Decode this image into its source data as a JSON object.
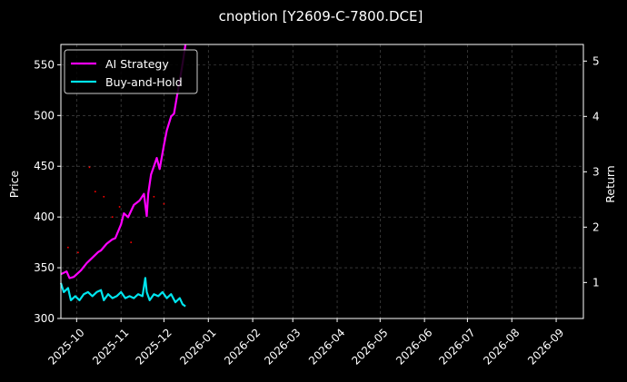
{
  "chart_data": {
    "type": "line",
    "title": "cnoption [Y2609-C-7800.DCE]",
    "ylabel": "Price",
    "y2label": "Return",
    "x_ticks": [
      "2025-10",
      "2025-11",
      "2025-12",
      "2026-01",
      "2026-02",
      "2026-03",
      "2026-04",
      "2026-05",
      "2026-06",
      "2026-07",
      "2026-08",
      "2026-09"
    ],
    "xlim": [
      "2025-09-20",
      "2026-09-20"
    ],
    "ylim": [
      300,
      570
    ],
    "y_ticks": [
      300,
      350,
      400,
      450,
      500,
      550
    ],
    "y2lim": [
      0.35,
      5.3
    ],
    "y2_ticks": [
      1,
      2,
      3,
      4,
      5
    ],
    "grid": true,
    "legend": "top-left",
    "colors": {
      "background": "#000000",
      "grid": "#555555",
      "spine": "#ffffff",
      "ai_strategy": "#ff00ff",
      "buy_and_hold": "#00e5ee",
      "trade_marker": "#ff0000"
    },
    "series": [
      {
        "name": "AI Strategy",
        "axis": "right",
        "x": [
          "2025-09-20",
          "2025-09-24",
          "2025-09-26",
          "2025-09-29",
          "2025-10-04",
          "2025-10-08",
          "2025-10-12",
          "2025-10-16",
          "2025-10-18",
          "2025-10-22",
          "2025-10-26",
          "2025-10-28",
          "2025-11-01",
          "2025-11-03",
          "2025-11-06",
          "2025-11-10",
          "2025-11-14",
          "2025-11-17",
          "2025-11-19",
          "2025-11-20",
          "2025-11-22",
          "2025-11-24",
          "2025-11-26",
          "2025-11-28",
          "2025-12-01",
          "2025-12-03",
          "2025-12-06",
          "2025-12-08",
          "2025-12-10",
          "2025-12-12",
          "2025-12-14",
          "2025-12-16"
        ],
        "values": [
          1.15,
          1.2,
          1.08,
          1.1,
          1.22,
          1.35,
          1.45,
          1.55,
          1.58,
          1.7,
          1.78,
          1.8,
          2.05,
          2.25,
          2.18,
          2.4,
          2.48,
          2.6,
          2.2,
          2.6,
          2.95,
          3.1,
          3.25,
          3.05,
          3.48,
          3.75,
          4.0,
          4.05,
          4.35,
          4.65,
          4.95,
          5.3
        ]
      },
      {
        "name": "Buy-and-Hold",
        "axis": "left",
        "x": [
          "2025-09-20",
          "2025-09-22",
          "2025-09-25",
          "2025-09-27",
          "2025-09-30",
          "2025-10-03",
          "2025-10-06",
          "2025-10-09",
          "2025-10-12",
          "2025-10-15",
          "2025-10-18",
          "2025-10-20",
          "2025-10-23",
          "2025-10-26",
          "2025-10-29",
          "2025-11-01",
          "2025-11-04",
          "2025-11-07",
          "2025-11-10",
          "2025-11-13",
          "2025-11-16",
          "2025-11-18",
          "2025-11-19",
          "2025-11-21",
          "2025-11-24",
          "2025-11-27",
          "2025-11-30",
          "2025-12-03",
          "2025-12-06",
          "2025-12-09",
          "2025-12-12",
          "2025-12-14",
          "2025-12-16"
        ],
        "values": [
          335,
          326,
          330,
          318,
          322,
          318,
          324,
          326,
          322,
          326,
          328,
          318,
          324,
          320,
          322,
          326,
          320,
          322,
          320,
          324,
          322,
          340,
          326,
          318,
          324,
          322,
          326,
          320,
          324,
          316,
          320,
          314,
          312
        ]
      }
    ],
    "trade_markers": {
      "x": [
        "2025-09-25",
        "2025-10-02",
        "2025-10-10",
        "2025-10-14",
        "2025-10-20",
        "2025-10-26",
        "2025-10-31",
        "2025-11-08",
        "2025-11-24",
        "2025-12-01"
      ],
      "y": [
        370,
        365,
        449,
        425,
        420,
        400,
        410,
        375,
        420,
        413
      ]
    }
  }
}
